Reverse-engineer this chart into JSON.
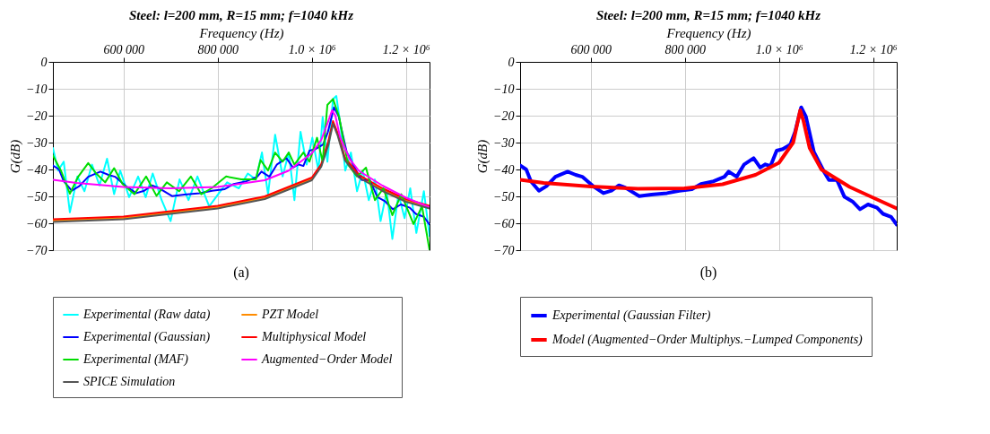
{
  "chart_data": [
    {
      "type": "line",
      "title": "Steel: l=200 mm, R=15 mm;  f=1040 kHz",
      "xlabel": "Frequency (Hz)",
      "ylabel": "G(dB)",
      "xlim": [
        450000,
        1250000
      ],
      "ylim": [
        -70,
        0
      ],
      "xticks": [
        {
          "value": 600000,
          "label": "600 000"
        },
        {
          "value": 800000,
          "label": "800 000"
        },
        {
          "value": 1000000,
          "label": "1.0 × 10⁶"
        },
        {
          "value": 1200000,
          "label": "1.2 × 10⁶"
        }
      ],
      "yticks": [
        0,
        {
          "value": -10,
          "label": "−10"
        },
        {
          "value": -20,
          "label": "−20"
        },
        {
          "value": -30,
          "label": "−30"
        },
        {
          "value": -40,
          "label": "−40"
        },
        {
          "value": -50,
          "label": "−50"
        },
        {
          "value": -60,
          "label": "−60"
        },
        {
          "value": -70,
          "label": "−70"
        }
      ],
      "grid": true,
      "legend": "bottom",
      "annotations": [
        "(a)"
      ],
      "line_style": "solid",
      "series": [
        {
          "name": "Experimental (Raw data)",
          "color": "#00ffff",
          "x": [
            450000,
            461000,
            473000,
            486000,
            502000,
            517000,
            533000,
            549000,
            565000,
            580000,
            593000,
            612000,
            631000,
            647000,
            662000,
            681000,
            700000,
            719000,
            738000,
            757000,
            782000,
            801000,
            820000,
            845000,
            864000,
            881000,
            894000,
            907000,
            922000,
            938000,
            951000,
            963000,
            976000,
            989000,
            1001000,
            1014000,
            1023000,
            1033000,
            1045000,
            1052000,
            1061000,
            1071000,
            1083000,
            1096000,
            1108000,
            1121000,
            1134000,
            1146000,
            1159000,
            1171000,
            1184000,
            1197000,
            1209000,
            1222000,
            1238000,
            1250000
          ],
          "values": [
            -32,
            -40.4,
            -37.1,
            -55.9,
            -42.6,
            -48.1,
            -38.2,
            -45.9,
            -36,
            -49.2,
            -40.4,
            -50.3,
            -42.6,
            -50.3,
            -41.5,
            -51.4,
            -59.2,
            -43.7,
            -51.4,
            -42.6,
            -53.7,
            -49.2,
            -44.8,
            -47,
            -41.5,
            -43.7,
            -33.7,
            -49.2,
            -27.1,
            -42.6,
            -33.7,
            -51.4,
            -26,
            -38.2,
            -28.2,
            -40.4,
            -20.5,
            -37.1,
            -13.8,
            -12.7,
            -23.8,
            -40.4,
            -33.7,
            -48.1,
            -40.4,
            -51.4,
            -43.7,
            -59.2,
            -48.1,
            -65.8,
            -49.2,
            -58.1,
            -47,
            -63.6,
            -48.1,
            -64.7
          ]
        },
        {
          "name": "PZT Model",
          "color": "#ff8c00",
          "x": [
            450000,
            600000,
            800000,
            900000,
            1000000,
            1020000,
            1035000,
            1045000,
            1055000,
            1070000,
            1100000,
            1150000,
            1200000,
            1250000
          ],
          "values": [
            -59,
            -58,
            -54,
            -50.5,
            -43.5,
            -38.5,
            -30,
            -22.5,
            -27,
            -36,
            -42.5,
            -47.5,
            -51.5,
            -54
          ]
        },
        {
          "name": "Experimental (Gaussian)",
          "color": "#0000ff",
          "x": [
            450000,
            463000,
            473000,
            490000,
            506000,
            525000,
            551000,
            568000,
            582000,
            605000,
            627000,
            644000,
            660000,
            673000,
            703000,
            729000,
            762000,
            788000,
            815000,
            834000,
            861000,
            884000,
            893000,
            910000,
            926000,
            946000,
            960000,
            971000,
            982000,
            995000,
            1008000,
            1024000,
            1034000,
            1047000,
            1057000,
            1074000,
            1096000,
            1106000,
            1123000,
            1139000,
            1156000,
            1172000,
            1189000,
            1208000,
            1221000,
            1238000,
            1250000
          ],
          "values": [
            -38.5,
            -40,
            -44.4,
            -47.9,
            -46.2,
            -42.7,
            -40.8,
            -42,
            -42.7,
            -46.2,
            -48.8,
            -47.9,
            -45.9,
            -46.7,
            -49.9,
            -49.3,
            -48.8,
            -47.9,
            -47.3,
            -45.4,
            -44.4,
            -42.7,
            -40.8,
            -42.7,
            -38.1,
            -35.8,
            -39.3,
            -38.1,
            -38.7,
            -33,
            -32.4,
            -30.7,
            -26.1,
            -16.9,
            -20.3,
            -33.5,
            -41,
            -43.9,
            -43.9,
            -50.2,
            -51.9,
            -54.8,
            -53,
            -54.2,
            -56.5,
            -57.6,
            -60.5
          ]
        },
        {
          "name": "Multiphysical Model",
          "color": "#ff0000",
          "x": [
            450000,
            600000,
            800000,
            900000,
            1000000,
            1020000,
            1035000,
            1045000,
            1055000,
            1070000,
            1100000,
            1150000,
            1200000,
            1250000
          ],
          "values": [
            -58.5,
            -57.5,
            -53.5,
            -50,
            -43,
            -38,
            -29.5,
            -22,
            -26.5,
            -35.5,
            -42,
            -47,
            -51,
            -53.5
          ]
        },
        {
          "name": "Experimental (MAF)",
          "color": "#00dd00",
          "x": [
            450000,
            467000,
            486000,
            504000,
            525000,
            542000,
            561000,
            580000,
            598000,
            623000,
            648000,
            670000,
            692000,
            718000,
            743000,
            765000,
            787000,
            818000,
            850000,
            881000,
            891000,
            907000,
            922000,
            938000,
            951000,
            963000,
            982000,
            995000,
            1011000,
            1023000,
            1033000,
            1045000,
            1058000,
            1077000,
            1096000,
            1115000,
            1134000,
            1152000,
            1171000,
            1190000,
            1216000,
            1234000,
            1250000
          ],
          "values": [
            -34.8,
            -40.4,
            -49,
            -42.6,
            -37.6,
            -41.5,
            -44.8,
            -39.5,
            -45.4,
            -49.2,
            -42.6,
            -49.8,
            -44.8,
            -48.1,
            -42.6,
            -49.2,
            -47,
            -42.6,
            -43.7,
            -43.7,
            -36.5,
            -40.4,
            -33.7,
            -37.1,
            -33.7,
            -38.2,
            -33.7,
            -37.1,
            -28.2,
            -37.1,
            -16,
            -13.8,
            -20.5,
            -38.2,
            -42.6,
            -39.3,
            -51.4,
            -47,
            -57,
            -49.2,
            -60.3,
            -53.7,
            -70
          ]
        },
        {
          "name": "Augmented−Order Model",
          "color": "#ff00ff",
          "x": [
            450000,
            500000,
            600000,
            700000,
            800000,
            900000,
            950000,
            1000000,
            1020000,
            1035000,
            1043000,
            1050000,
            1060000,
            1080000,
            1100000,
            1150000,
            1200000,
            1250000
          ],
          "values": [
            -43.8,
            -45,
            -46.5,
            -47,
            -46.5,
            -44,
            -40.5,
            -34,
            -29,
            -22,
            -18,
            -20,
            -28,
            -36,
            -40.5,
            -46,
            -50.5,
            -54
          ]
        },
        {
          "name": "SPICE Simulation",
          "color": "#555555",
          "x": [
            450000,
            600000,
            800000,
            900000,
            1000000,
            1020000,
            1035000,
            1045000,
            1055000,
            1070000,
            1100000,
            1150000,
            1200000,
            1250000
          ],
          "values": [
            -59.5,
            -58.5,
            -54.5,
            -51,
            -44,
            -39,
            -31,
            -23,
            -27.5,
            -36.5,
            -43,
            -48,
            -52,
            -54.5
          ]
        }
      ]
    },
    {
      "type": "line",
      "title": "Steel: l=200 mm, R=15 mm;  f=1040 kHz",
      "xlabel": "Frequency (Hz)",
      "ylabel": "G(dB)",
      "xlim": [
        450000,
        1250000
      ],
      "ylim": [
        -70,
        0
      ],
      "xticks": [
        {
          "value": 600000,
          "label": "600 000"
        },
        {
          "value": 800000,
          "label": "800 000"
        },
        {
          "value": 1000000,
          "label": "1.0 × 10⁶"
        },
        {
          "value": 1200000,
          "label": "1.2 × 10⁶"
        }
      ],
      "yticks": [
        0,
        {
          "value": -10,
          "label": "−10"
        },
        {
          "value": -20,
          "label": "−20"
        },
        {
          "value": -30,
          "label": "−30"
        },
        {
          "value": -40,
          "label": "−40"
        },
        {
          "value": -50,
          "label": "−50"
        },
        {
          "value": -60,
          "label": "−60"
        },
        {
          "value": -70,
          "label": "−70"
        }
      ],
      "grid": true,
      "legend": "bottom",
      "annotations": [
        "(b)"
      ],
      "line_style": "solid",
      "series": [
        {
          "name": "Experimental (Gaussian Filter)",
          "color": "#0000ff",
          "x": [
            450000,
            463000,
            473000,
            490000,
            506000,
            525000,
            551000,
            568000,
            582000,
            605000,
            627000,
            644000,
            660000,
            673000,
            703000,
            729000,
            762000,
            788000,
            815000,
            834000,
            861000,
            884000,
            893000,
            910000,
            926000,
            946000,
            960000,
            971000,
            982000,
            995000,
            1008000,
            1024000,
            1034000,
            1047000,
            1057000,
            1074000,
            1096000,
            1106000,
            1123000,
            1139000,
            1156000,
            1172000,
            1189000,
            1208000,
            1221000,
            1238000,
            1250000
          ],
          "values": [
            -38.5,
            -40,
            -44.4,
            -47.9,
            -46.2,
            -42.7,
            -40.8,
            -42,
            -42.7,
            -46.2,
            -48.8,
            -47.9,
            -45.9,
            -46.7,
            -49.9,
            -49.3,
            -48.8,
            -47.9,
            -47.3,
            -45.4,
            -44.4,
            -42.7,
            -40.8,
            -42.7,
            -38.1,
            -35.8,
            -39.3,
            -38.1,
            -38.7,
            -33,
            -32.4,
            -30.7,
            -26.1,
            -16.9,
            -20.3,
            -33.5,
            -41,
            -43.9,
            -43.9,
            -50.2,
            -51.9,
            -54.8,
            -53,
            -54.2,
            -56.5,
            -57.6,
            -60.5
          ]
        },
        {
          "name": "Model (Augmented−Order Multiphys.−Lumped Components)",
          "color": "#ff0000",
          "x": [
            450000,
            500000,
            600000,
            700000,
            800000,
            880000,
            950000,
            1000000,
            1030000,
            1040000,
            1045000,
            1052000,
            1065000,
            1090000,
            1150000,
            1200000,
            1250000
          ],
          "values": [
            -43.8,
            -45,
            -46.3,
            -47.2,
            -47,
            -45.5,
            -42,
            -37.5,
            -30,
            -22,
            -18,
            -22,
            -32,
            -40,
            -46.5,
            -50.5,
            -54.5
          ]
        }
      ]
    }
  ]
}
